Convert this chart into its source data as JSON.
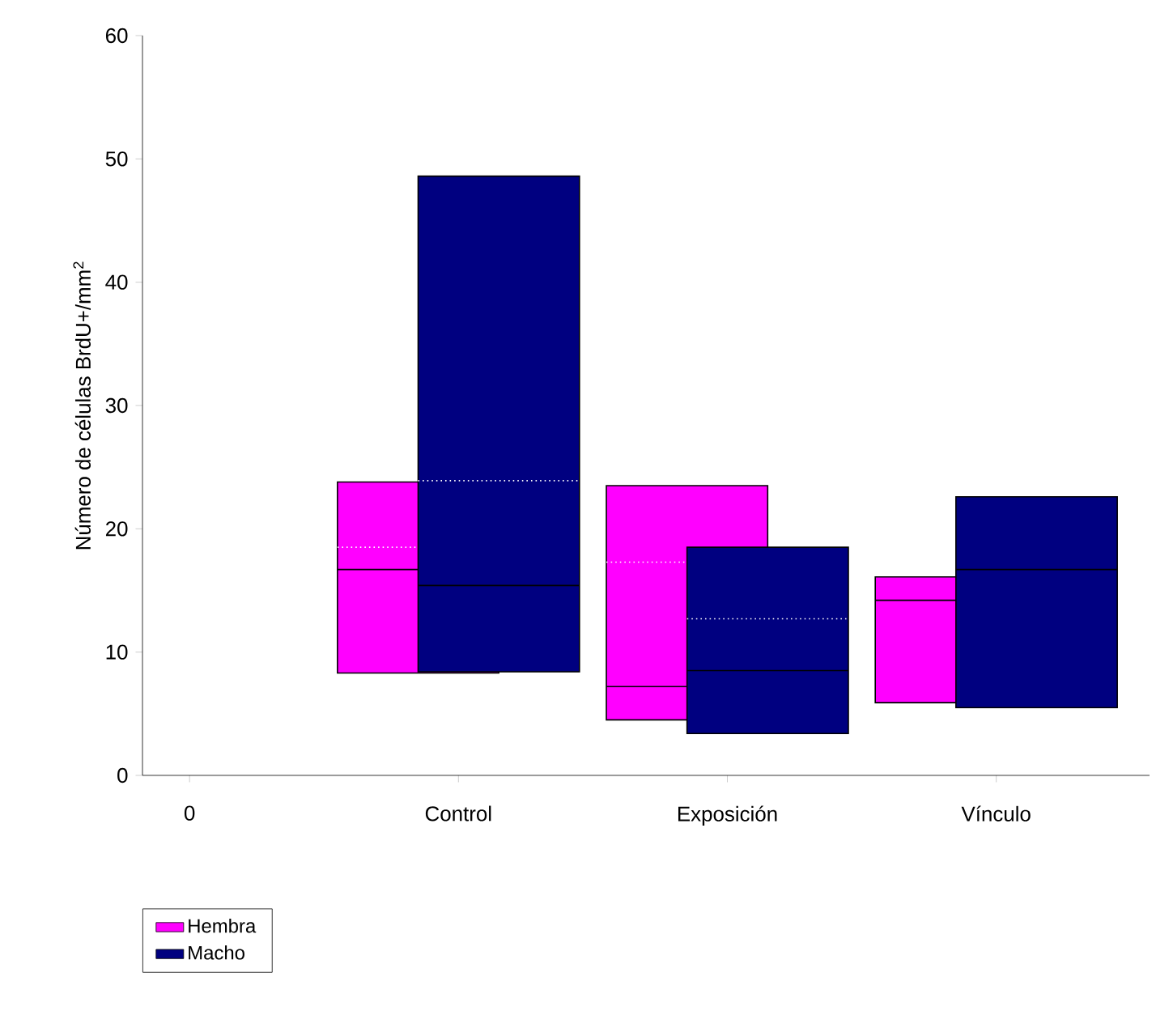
{
  "chart_data": {
    "type": "box",
    "ylabel": "Número de células BrdU+/mm$^{2}$",
    "categories": [
      "0",
      "Control",
      "Exposición",
      "Vínculo"
    ],
    "series": [
      {
        "name": "Hembra",
        "color": "#ff00ff",
        "boxes": [
          null,
          {
            "low": 8.3,
            "q1": 8.3,
            "median": 16.7,
            "q3": 23.8,
            "high": 23.8,
            "mean": 18.5
          },
          {
            "low": 4.5,
            "q1": 4.5,
            "median": 7.2,
            "q3": 23.5,
            "high": 23.5,
            "mean": 17.3
          },
          {
            "low": 5.9,
            "q1": 5.9,
            "median": 14.2,
            "q3": 16.1,
            "high": 16.1
          }
        ]
      },
      {
        "name": "Macho",
        "color": "#000080",
        "boxes": [
          null,
          {
            "low": 8.4,
            "q1": 8.4,
            "median": 15.4,
            "q3": 48.6,
            "high": 48.6,
            "mean": 23.9
          },
          {
            "low": 3.4,
            "q1": 3.4,
            "median": 8.5,
            "q3": 18.5,
            "high": 18.5,
            "mean": 12.7
          },
          {
            "low": 5.5,
            "q1": 5.5,
            "median": 16.7,
            "q3": 22.6,
            "high": 22.6
          }
        ]
      }
    ],
    "ylim": [
      0,
      60
    ],
    "yticks": [
      0,
      10,
      20,
      30,
      40,
      50,
      60
    ],
    "legend": "bottom left"
  }
}
